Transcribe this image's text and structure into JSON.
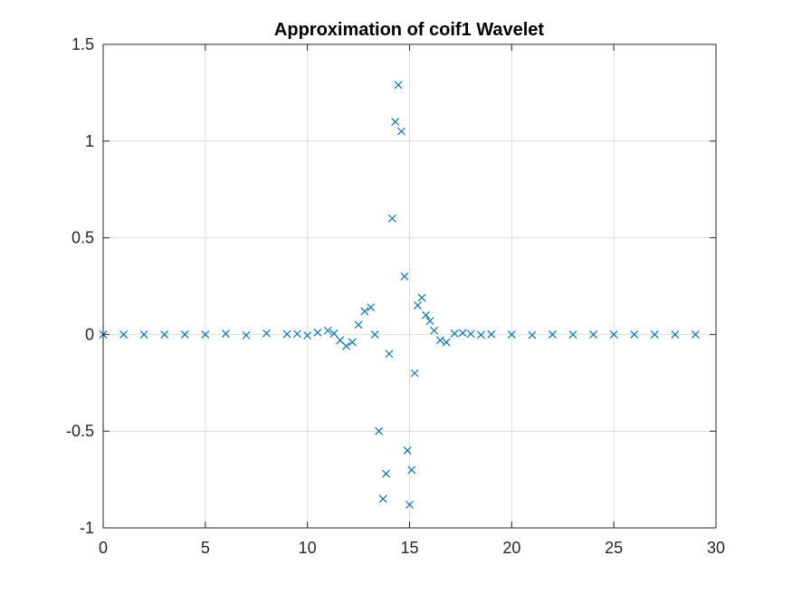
{
  "chart_data": {
    "type": "scatter",
    "title": "Approximation of coif1 Wavelet",
    "xlabel": "",
    "ylabel": "",
    "xlim": [
      0,
      30
    ],
    "ylim": [
      -1,
      1.5
    ],
    "xticks": [
      "0",
      "5",
      "10",
      "15",
      "20",
      "25",
      "30"
    ],
    "yticks": [
      "-1",
      "-0.5",
      "0",
      "0.5",
      "1",
      "1.5"
    ],
    "grid": true,
    "marker": "x",
    "marker_color": "#0072BD",
    "series": [
      {
        "x": [
          0,
          1,
          2,
          3,
          4,
          5,
          6,
          7,
          8,
          9,
          9.5,
          10,
          10.5,
          11,
          11.3,
          11.6,
          11.9,
          12.2,
          12.5,
          12.8,
          13.1,
          13.3,
          13.5,
          13.7,
          13.85,
          14.0,
          14.15,
          14.3,
          14.45,
          14.6,
          14.75,
          14.9,
          15.0,
          15.1,
          15.25,
          15.4,
          15.6,
          15.8,
          16.0,
          16.2,
          16.5,
          16.8,
          17.2,
          17.6,
          18.0,
          18.5,
          19,
          20,
          21,
          22,
          23,
          24,
          25,
          26,
          27,
          28,
          29
        ],
        "y": [
          0,
          0,
          0,
          0,
          0,
          0,
          0.004,
          -0.004,
          0.006,
          0.002,
          0.003,
          -0.005,
          0.01,
          0.02,
          0.005,
          -0.03,
          -0.06,
          -0.04,
          0.05,
          0.12,
          0.14,
          0.0,
          -0.5,
          -0.85,
          -0.72,
          -0.1,
          0.6,
          1.1,
          1.29,
          1.05,
          0.3,
          -0.6,
          -0.88,
          -0.7,
          -0.2,
          0.15,
          0.19,
          0.1,
          0.07,
          0.02,
          -0.03,
          -0.04,
          0.005,
          0.008,
          0.003,
          -0.002,
          0.001,
          0,
          -0.003,
          0,
          0,
          0,
          0,
          0,
          0,
          0,
          0
        ]
      }
    ]
  }
}
